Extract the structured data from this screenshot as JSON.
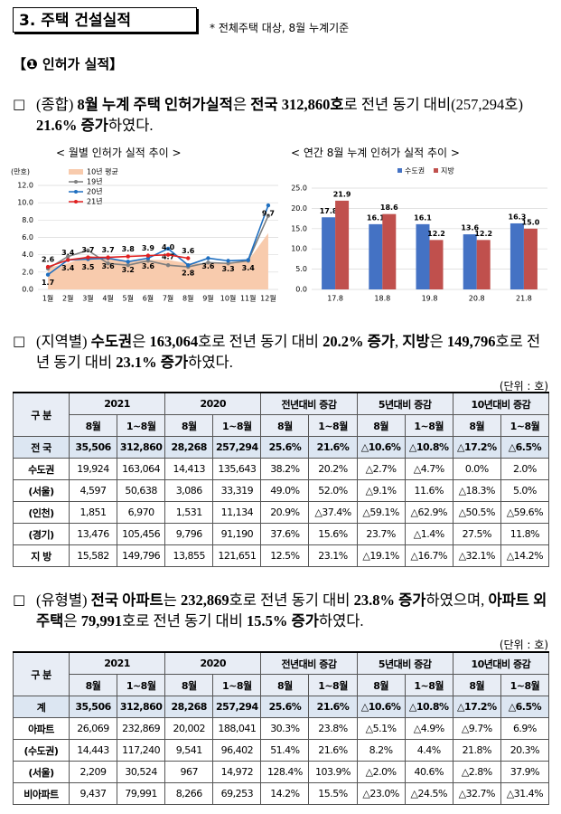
{
  "header": {
    "title": "3. 주택 건설실적",
    "note": "* 전체주택 대상, 8월 누계기준"
  },
  "section_title": "【❶ 인허가 실적】",
  "paragraphs": [
    {
      "bullet": "□",
      "segments": [
        {
          "text": "(종합) ",
          "bold": false
        },
        {
          "text": "8월 누계 주택 인허가실적",
          "bold": true
        },
        {
          "text": "은 ",
          "bold": false
        },
        {
          "text": "전국 312,860호",
          "bold": true
        },
        {
          "text": "로 전년 동기 대비(257,294호) ",
          "bold": false
        },
        {
          "text": "21.6% 증가",
          "bold": true
        },
        {
          "text": "하였다.",
          "bold": false
        }
      ]
    },
    {
      "bullet": "□",
      "segments": [
        {
          "text": "(지역별) ",
          "bold": false
        },
        {
          "text": "수도권",
          "bold": true
        },
        {
          "text": "은 ",
          "bold": false
        },
        {
          "text": "163,064",
          "bold": true
        },
        {
          "text": "호로 전년 동기 대비 ",
          "bold": false
        },
        {
          "text": "20.2% 증가",
          "bold": true
        },
        {
          "text": ", ",
          "bold": false
        },
        {
          "text": "지방",
          "bold": true
        },
        {
          "text": "은 ",
          "bold": false
        },
        {
          "text": "149,796",
          "bold": true
        },
        {
          "text": "호로 전년 동기 대비 ",
          "bold": false
        },
        {
          "text": "23.1% 증가",
          "bold": true
        },
        {
          "text": "하였다.",
          "bold": false
        }
      ]
    },
    {
      "bullet": "□",
      "segments": [
        {
          "text": "(유형별) ",
          "bold": false
        },
        {
          "text": "전국 아파트",
          "bold": true
        },
        {
          "text": "는 ",
          "bold": false
        },
        {
          "text": "232,869",
          "bold": true
        },
        {
          "text": "호로 전년 동기 대비 ",
          "bold": false
        },
        {
          "text": "23.8% 증가",
          "bold": true
        },
        {
          "text": "하였으며, ",
          "bold": false
        },
        {
          "text": "아파트 외 주택",
          "bold": true
        },
        {
          "text": "은 ",
          "bold": false
        },
        {
          "text": "79,991",
          "bold": true
        },
        {
          "text": "호로 전년 동기 대비 ",
          "bold": false
        },
        {
          "text": "15.5% 증가",
          "bold": true
        },
        {
          "text": "하였다.",
          "bold": false
        }
      ]
    }
  ],
  "charts": [
    {
      "type": "line",
      "title": "< 월별 인허가 실적 추이 >",
      "unit": "(만호)",
      "categories": [
        "1월",
        "2월",
        "3월",
        "4월",
        "5월",
        "6월",
        "7월",
        "8월",
        "9월",
        "10월",
        "11월",
        "12월"
      ],
      "ylim": [
        0,
        12
      ],
      "yticks": [
        {
          "value": 0,
          "label": "0.0"
        },
        {
          "value": 2,
          "label": "2.0"
        },
        {
          "value": 4,
          "label": "4.0"
        },
        {
          "value": 6,
          "label": "6.0"
        },
        {
          "value": 8,
          "label": "8.0"
        },
        {
          "value": 10,
          "label": "10.0"
        },
        {
          "value": 12,
          "label": "12.0"
        }
      ],
      "grid": true,
      "series": [
        {
          "name": "10년 평균",
          "style": "area",
          "color": "#f8cbad",
          "values": [
            2.5,
            3.0,
            3.9,
            3.5,
            3.3,
            3.4,
            3.4,
            3.0,
            3.0,
            3.1,
            3.3,
            6.5
          ]
        },
        {
          "name": "19년",
          "style": "line",
          "color": "#7f7f7f",
          "values": [
            2.4,
            3.8,
            4.5,
            3.0,
            2.8,
            3.3,
            2.8,
            2.6,
            3.1,
            3.0,
            3.3,
            8.5
          ]
        },
        {
          "name": "20년",
          "style": "line",
          "color": "#1f6fc0",
          "values": [
            1.7,
            3.4,
            3.5,
            3.6,
            3.2,
            3.6,
            4.7,
            2.8,
            3.6,
            3.3,
            3.4,
            9.7
          ],
          "value_labels": [
            "1.7",
            "3.4",
            "3.5",
            "3.6",
            "3.2",
            "3.6",
            "4.7",
            "2.8",
            "3.6",
            "3.3",
            "3.4",
            "9.7"
          ]
        },
        {
          "name": "21년",
          "style": "line",
          "color": "#e02020",
          "values": [
            2.6,
            3.4,
            3.7,
            3.7,
            3.8,
            3.9,
            4.0,
            3.6,
            null,
            null,
            null,
            null
          ],
          "value_labels": [
            "2.6",
            "3.4",
            "3.7",
            "3.7",
            "3.8",
            "3.9",
            "4.0",
            "3.6",
            null,
            null,
            null,
            null
          ]
        }
      ]
    },
    {
      "type": "bar",
      "title": "< 연간 8월 누계 인허가 실적 추이 >",
      "categories": [
        "17.8",
        "18.8",
        "19.8",
        "20.8",
        "21.8"
      ],
      "ylim": [
        0,
        25
      ],
      "yticks": [
        {
          "value": 0,
          "label": "0.0"
        },
        {
          "value": 5,
          "label": "5.0"
        },
        {
          "value": 10,
          "label": "10.0"
        },
        {
          "value": 15,
          "label": "15.0"
        },
        {
          "value": 20,
          "label": "20.0"
        },
        {
          "value": 25,
          "label": "25.0"
        }
      ],
      "grid": true,
      "series": [
        {
          "name": "수도권",
          "color": "#4472c4",
          "values": [
            17.8,
            16.1,
            16.1,
            13.6,
            16.3
          ],
          "value_labels": [
            "17.8",
            "16.1",
            "16.1",
            "13.6",
            "16.3"
          ]
        },
        {
          "name": "지방",
          "color": "#c0504d",
          "values": [
            21.9,
            18.6,
            12.2,
            12.2,
            15.0
          ],
          "value_labels": [
            "21.9",
            "18.6",
            "12.2",
            "12.2",
            "15.0"
          ]
        }
      ]
    }
  ],
  "tables": [
    {
      "unit": "(단위 : 호)",
      "corner": "구 분",
      "groups": [
        "2021",
        "2020",
        "전년대비 증감",
        "5년대비 증감",
        "10년대비 증감"
      ],
      "subheaders": [
        "8월",
        "1~8월",
        "8월",
        "1~8월",
        "8월",
        "1~8월",
        "8월",
        "1~8월",
        "8월",
        "1~8월"
      ],
      "rows": [
        {
          "label": "전 국",
          "cells": [
            "35,506",
            "312,860",
            "28,268",
            "257,294",
            "25.6%",
            "21.6%",
            "△10.6%",
            "△10.8%",
            "△17.2%",
            "△6.5%"
          ]
        },
        {
          "label": "수도권",
          "cells": [
            "19,924",
            "163,064",
            "14,413",
            "135,643",
            "38.2%",
            "20.2%",
            "△2.7%",
            "△4.7%",
            "0.0%",
            "2.0%"
          ]
        },
        {
          "label": "(서울)",
          "cells": [
            "4,597",
            "50,638",
            "3,086",
            "33,319",
            "49.0%",
            "52.0%",
            "△9.1%",
            "11.6%",
            "△18.3%",
            "5.0%"
          ]
        },
        {
          "label": "(인천)",
          "cells": [
            "1,851",
            "6,970",
            "1,531",
            "11,134",
            "20.9%",
            "△37.4%",
            "△59.1%",
            "△62.9%",
            "△50.5%",
            "△59.6%"
          ]
        },
        {
          "label": "(경기)",
          "cells": [
            "13,476",
            "105,456",
            "9,796",
            "91,190",
            "37.6%",
            "15.6%",
            "23.7%",
            "△1.4%",
            "27.5%",
            "11.8%"
          ]
        },
        {
          "label": "지 방",
          "cells": [
            "15,582",
            "149,796",
            "13,855",
            "121,651",
            "12.5%",
            "23.1%",
            "△19.1%",
            "△16.7%",
            "△32.1%",
            "△14.2%"
          ]
        }
      ]
    },
    {
      "unit": "(단위 : 호)",
      "corner": "구 분",
      "groups": [
        "2021",
        "2020",
        "전년대비 증감",
        "5년대비 증감",
        "10년대비 증감"
      ],
      "subheaders": [
        "8월",
        "1~8월",
        "8월",
        "1~8월",
        "8월",
        "1~8월",
        "8월",
        "1~8월",
        "8월",
        "1~8월"
      ],
      "rows": [
        {
          "label": "계",
          "cells": [
            "35,506",
            "312,860",
            "28,268",
            "257,294",
            "25.6%",
            "21.6%",
            "△10.6%",
            "△10.8%",
            "△17.2%",
            "△6.5%"
          ]
        },
        {
          "label": "아파트",
          "cells": [
            "26,069",
            "232,869",
            "20,002",
            "188,041",
            "30.3%",
            "23.8%",
            "△5.1%",
            "△4.9%",
            "△9.7%",
            "6.9%"
          ]
        },
        {
          "label": "(수도권)",
          "cells": [
            "14,443",
            "117,240",
            "9,541",
            "96,402",
            "51.4%",
            "21.6%",
            "8.2%",
            "4.4%",
            "21.8%",
            "20.3%"
          ]
        },
        {
          "label": "(서울)",
          "cells": [
            "2,209",
            "30,524",
            "967",
            "14,972",
            "128.4%",
            "103.9%",
            "△2.0%",
            "40.6%",
            "△2.8%",
            "37.9%"
          ]
        },
        {
          "label": "비아파트",
          "cells": [
            "9,437",
            "79,991",
            "8,266",
            "69,253",
            "14.2%",
            "15.5%",
            "△23.0%",
            "△24.5%",
            "△32.7%",
            "△31.4%"
          ]
        }
      ]
    }
  ]
}
